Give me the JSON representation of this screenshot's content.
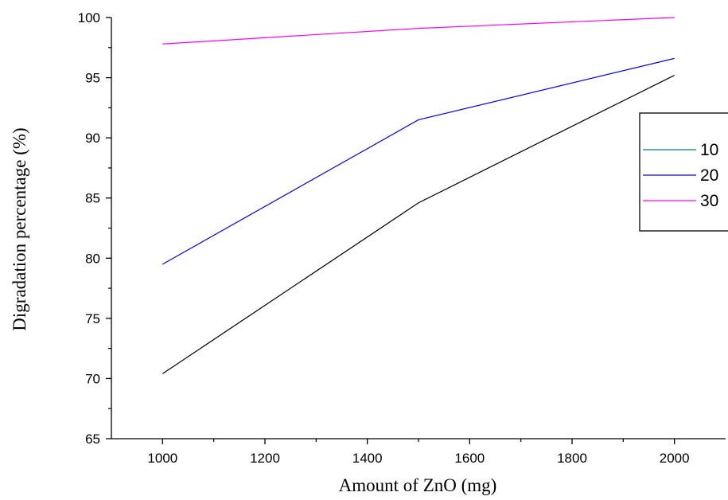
{
  "chart_data": {
    "type": "line",
    "xlabel": "Amount of ZnO (mg)",
    "ylabel": "Digradation percentage (%)",
    "xlim": [
      900,
      2100
    ],
    "ylim": [
      65,
      100
    ],
    "x_ticks": [
      1000,
      1200,
      1400,
      1600,
      1800,
      2000
    ],
    "y_ticks": [
      65,
      70,
      75,
      80,
      85,
      90,
      95,
      100
    ],
    "grid": false,
    "legend_position": "right",
    "x": [
      1000,
      1500,
      2000
    ],
    "series": [
      {
        "name": "10",
        "values": [
          70.4,
          84.6,
          95.2
        ],
        "color": "#000000",
        "legend_color": "#008080"
      },
      {
        "name": "20",
        "values": [
          79.5,
          91.5,
          96.6
        ],
        "color": "#0000ff",
        "legend_color": "#0000ff"
      },
      {
        "name": "30",
        "values": [
          97.8,
          99.1,
          100.0
        ],
        "color": "#ff00ff",
        "legend_color": "#ff00ff"
      }
    ]
  }
}
